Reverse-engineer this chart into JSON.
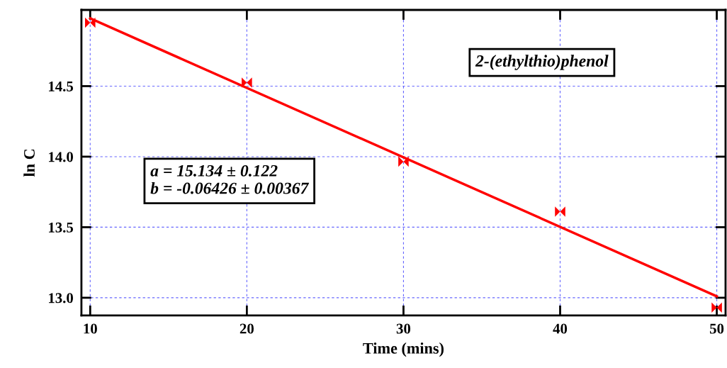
{
  "chart_data": {
    "type": "scatter",
    "xlabel": "Time (mins)",
    "ylabel": "ln C",
    "xlim": [
      9.44,
      50.56
    ],
    "ylim": [
      12.875,
      15.04
    ],
    "xticks": [
      10,
      20,
      30,
      40,
      50
    ],
    "yticks": [
      {
        "value": 13,
        "label": "13.0"
      },
      13.5,
      {
        "value": 14,
        "label": "14.0"
      },
      14.5
    ],
    "grid": true,
    "series": [
      {
        "color": "#ff0000",
        "x": [
          10,
          20,
          30,
          40,
          50
        ],
        "values": [
          14.95,
          14.525,
          13.965,
          13.61,
          12.93
        ]
      },
      {
        "type": "line",
        "color": "#ff0000",
        "x": [
          10,
          50
        ],
        "values": [
          14.98,
          13.01
        ]
      }
    ],
    "annotations": [
      "2-(ethylthio)phenol",
      "a = 15.134 ± 0.122\nb = -0.06426 ± 0.00367"
    ]
  }
}
